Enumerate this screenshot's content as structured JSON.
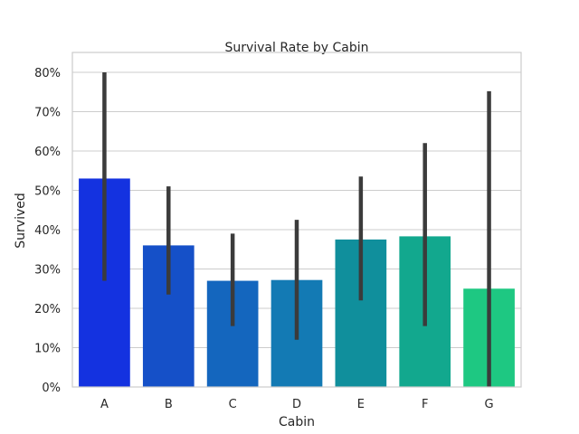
{
  "chart_data": {
    "type": "bar",
    "title": "Survival Rate by Cabin",
    "xlabel": "Cabin",
    "ylabel": "Survived",
    "categories": [
      "A",
      "B",
      "C",
      "D",
      "E",
      "F",
      "G"
    ],
    "values": [
      0.53,
      0.36,
      0.27,
      0.272,
      0.375,
      0.383,
      0.25
    ],
    "error_low": [
      0.27,
      0.235,
      0.155,
      0.12,
      0.22,
      0.155,
      0.0
    ],
    "error_high": [
      0.8,
      0.51,
      0.39,
      0.425,
      0.535,
      0.62,
      0.752
    ],
    "ylim": [
      0,
      0.8
    ],
    "yticks": [
      0,
      0.1,
      0.2,
      0.3,
      0.4,
      0.5,
      0.6,
      0.7,
      0.8
    ],
    "ytick_labels": [
      "0%",
      "10%",
      "20%",
      "30%",
      "40%",
      "50%",
      "60%",
      "70%",
      "80%"
    ],
    "grid": true,
    "colors": [
      "#1432e0",
      "#1550c8",
      "#1466be",
      "#137ab4",
      "#108f9c",
      "#12a88e",
      "#1ec882"
    ],
    "errorbar_color": "#3b3b3b",
    "frame_color": "#cccccc",
    "grid_color": "#cccccc"
  }
}
